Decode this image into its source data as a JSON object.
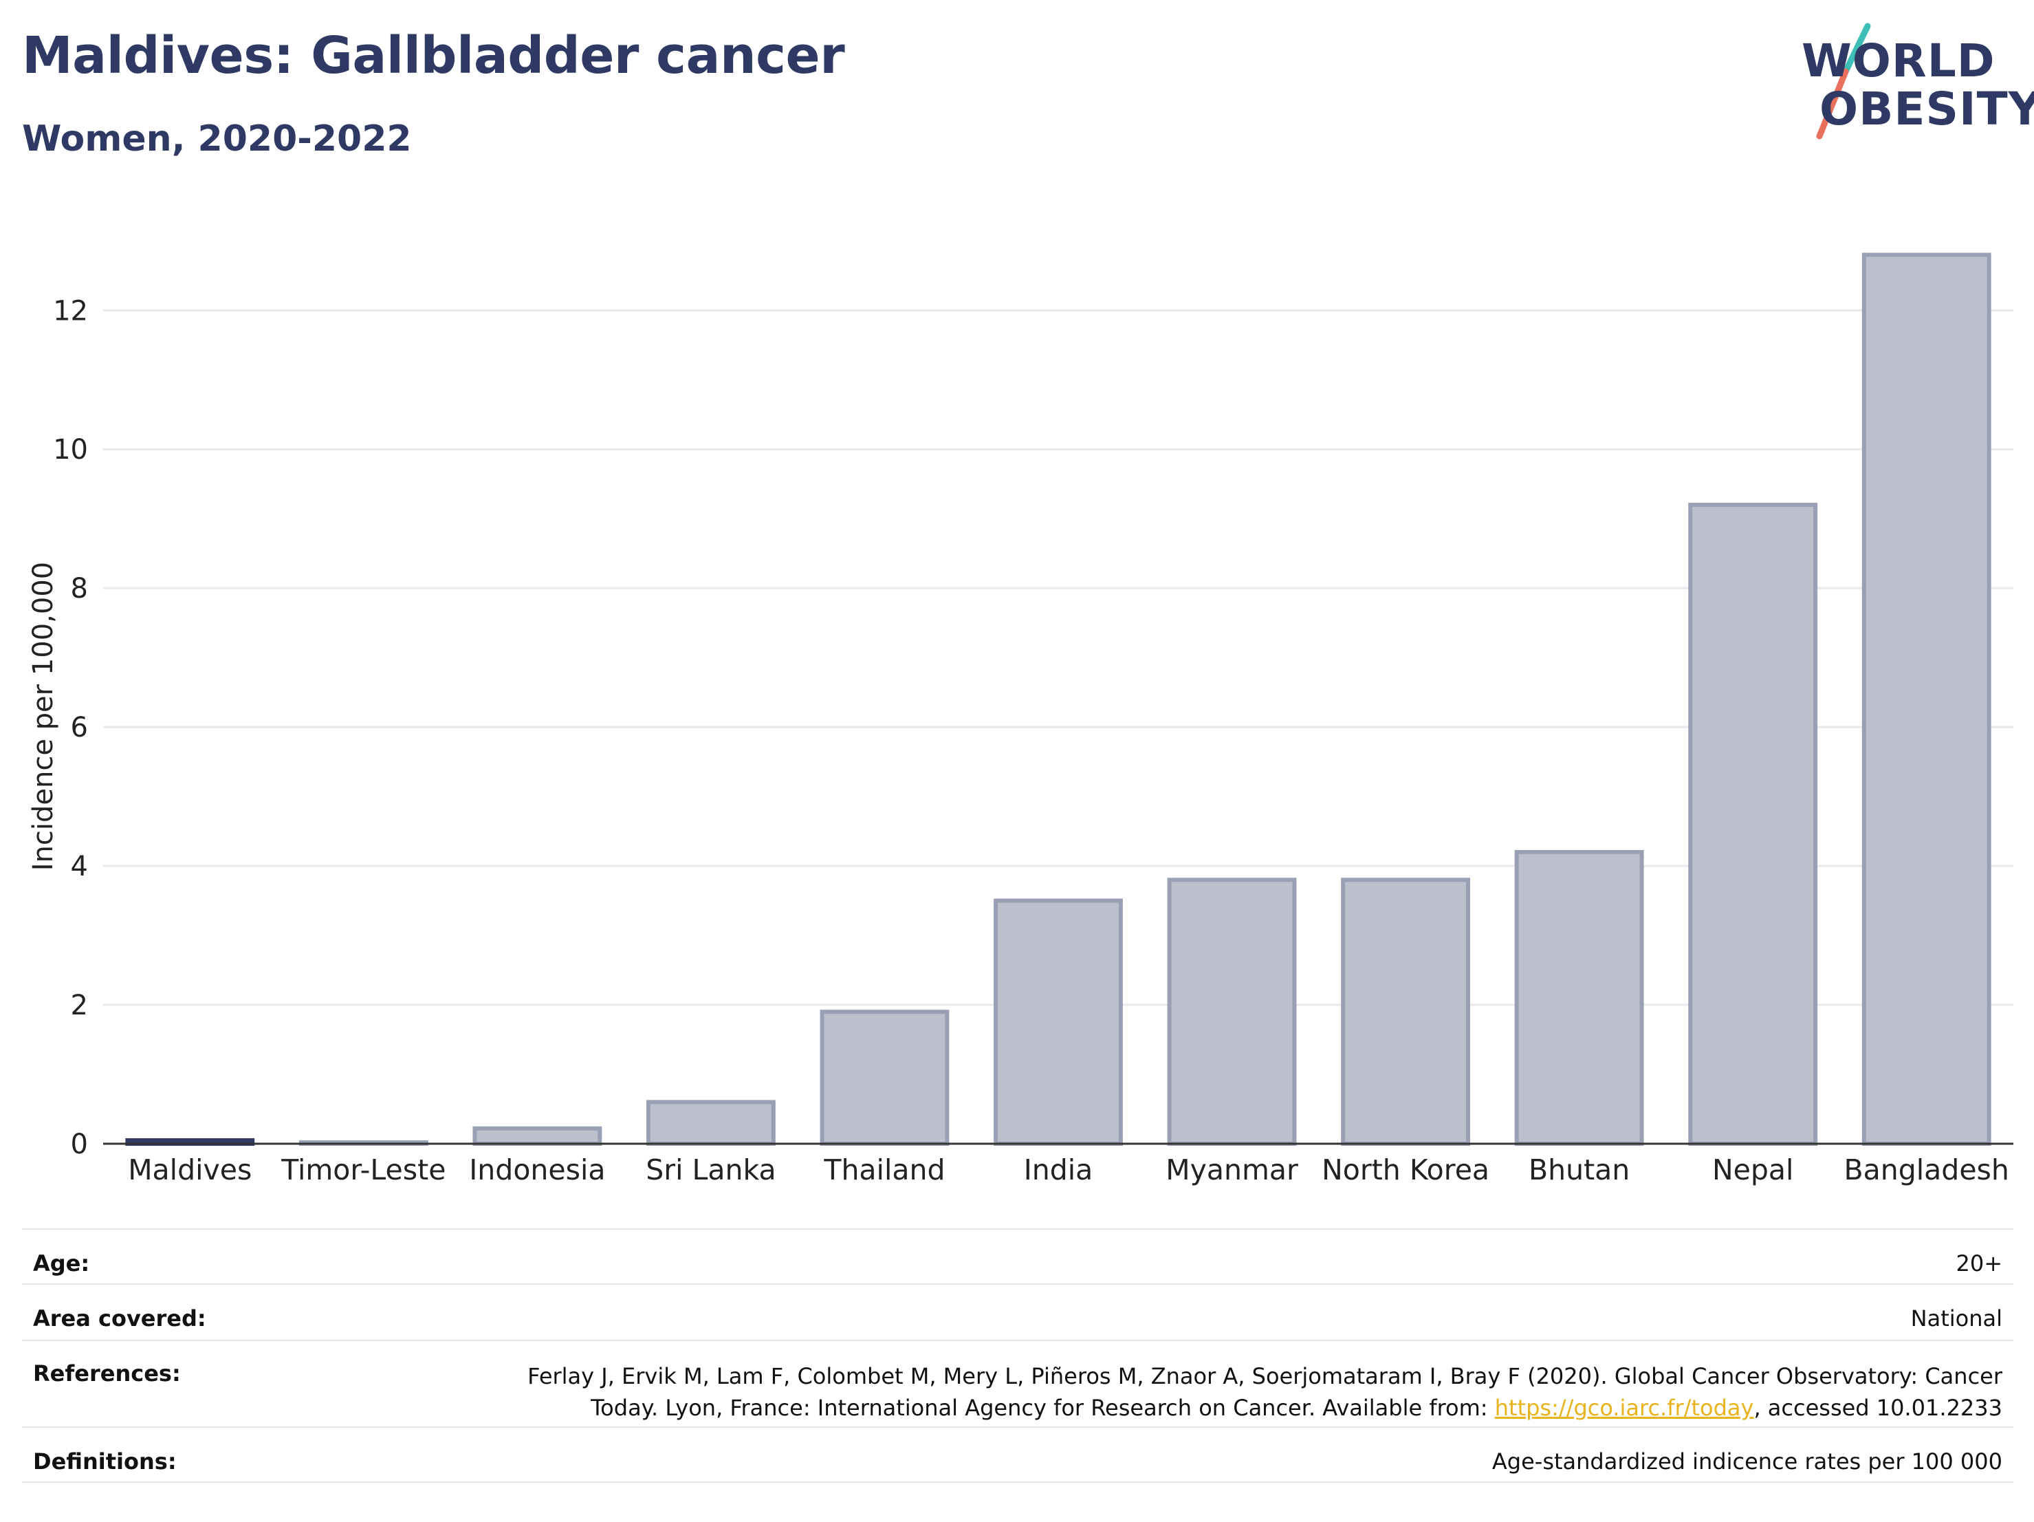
{
  "header": {
    "title": "Maldives: Gallbladder cancer",
    "subtitle": "Women, 2020-2022"
  },
  "logo": {
    "line1": "WORLD",
    "line2": "OBESITY",
    "colors": {
      "text": "#2e3a64",
      "slash_top": "#3dbfb8",
      "slash_bottom": "#e8705c"
    }
  },
  "chart_data": {
    "type": "bar",
    "categories": [
      "Maldives",
      "Timor-Leste",
      "Indonesia",
      "Sri Lanka",
      "Thailand",
      "India",
      "Myanmar",
      "North Korea",
      "Bhutan",
      "Nepal",
      "Bangladesh"
    ],
    "values": [
      0.05,
      0.02,
      0.22,
      0.6,
      1.9,
      3.5,
      3.8,
      3.8,
      4.2,
      9.2,
      12.8
    ],
    "highlight": "Maldives",
    "xlabel": "",
    "ylabel": "Incidence per 100,000",
    "ylim": [
      0,
      13.3
    ],
    "yticks": [
      0,
      2,
      4,
      6,
      8,
      10,
      12
    ],
    "grid": true,
    "colors": {
      "bar_fill": "#bcc0cd",
      "bar_stroke": "#9aa0b4",
      "highlight": "#2e3a64",
      "grid": "#e8e8ee"
    }
  },
  "meta": {
    "age": {
      "label": "Age:",
      "value": "20+"
    },
    "area": {
      "label": "Area covered:",
      "value": "National"
    },
    "references": {
      "label": "References:",
      "line1": "Ferlay J, Ervik M, Lam F, Colombet M, Mery L, Piñeros M, Znaor A, Soerjomataram I, Bray F (2020). Global Cancer Observatory: Cancer",
      "line2_pre": "Today. Lyon, France: International Agency for Research on Cancer. Available from: ",
      "link": "https://gco.iarc.fr/today",
      "line2_post": ", accessed 10.01.2233"
    },
    "definitions": {
      "label": "Definitions:",
      "value": "Age-standardized indicence rates per 100 000"
    }
  }
}
